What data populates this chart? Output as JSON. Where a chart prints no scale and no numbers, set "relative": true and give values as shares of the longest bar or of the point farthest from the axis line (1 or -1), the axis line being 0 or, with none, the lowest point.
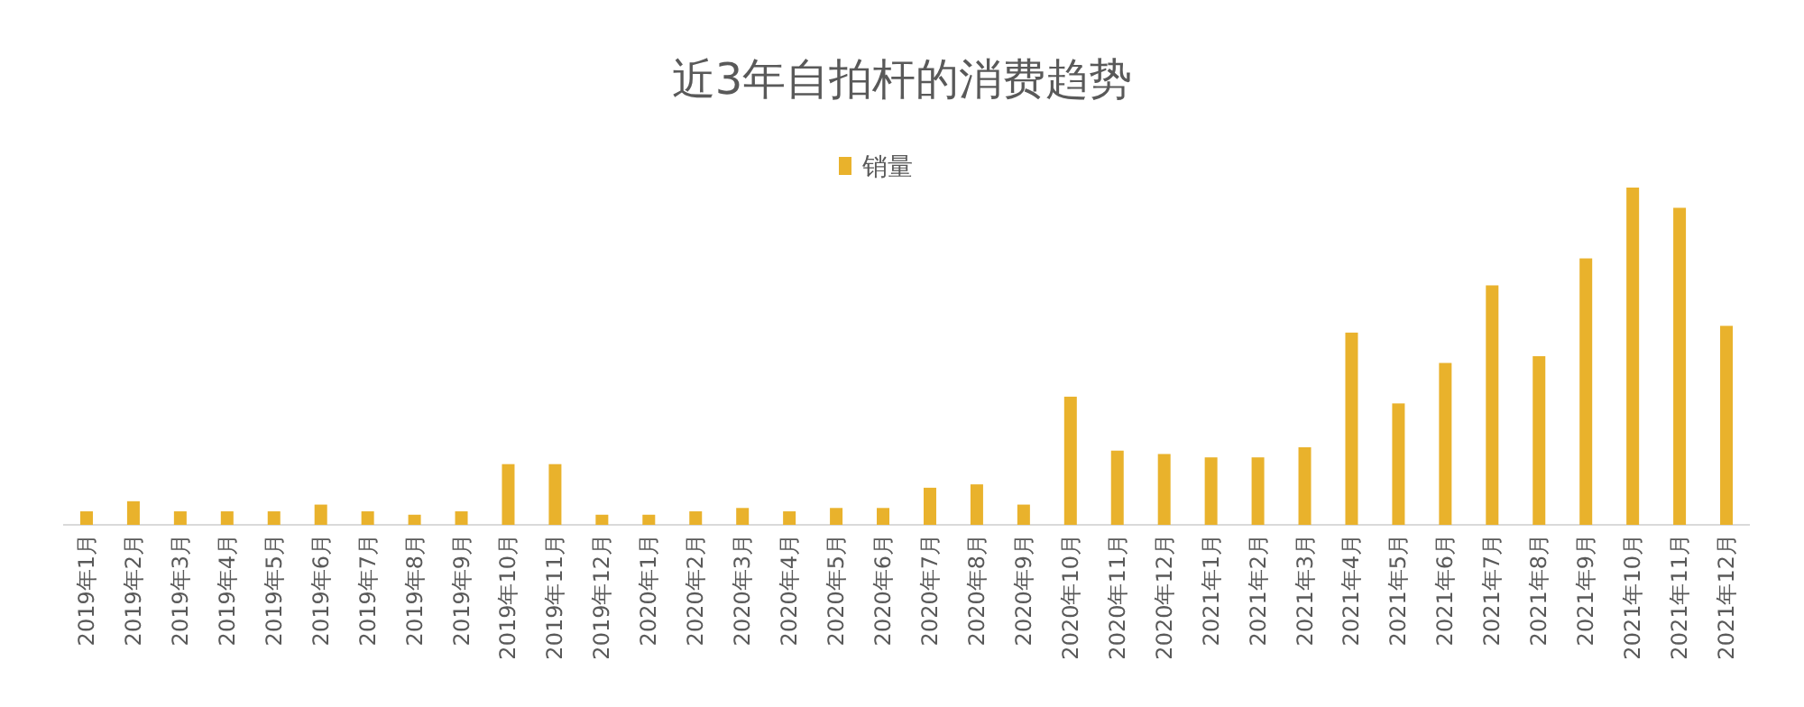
{
  "chart_data": {
    "type": "bar",
    "title": "近3年自拍杆的消费趋势",
    "relative": true,
    "legend": "top",
    "categories": [
      "2019年1月",
      "2019年2月",
      "2019年3月",
      "2019年4月",
      "2019年5月",
      "2019年6月",
      "2019年7月",
      "2019年8月",
      "2019年9月",
      "2019年10月",
      "2019年11月",
      "2019年12月",
      "2020年1月",
      "2020年2月",
      "2020年3月",
      "2020年4月",
      "2020年5月",
      "2020年6月",
      "2020年7月",
      "2020年8月",
      "2020年9月",
      "2020年10月",
      "2020年11月",
      "2020年12月",
      "2021年1月",
      "2021年2月",
      "2021年3月",
      "2021年4月",
      "2021年5月",
      "2021年6月",
      "2021年7月",
      "2021年8月",
      "2021年9月",
      "2021年10月",
      "2021年11月",
      "2021年12月"
    ],
    "series": [
      {
        "name": "销量",
        "color": "#e9b22c",
        "values": [
          0.04,
          0.07,
          0.04,
          0.04,
          0.04,
          0.06,
          0.04,
          0.03,
          0.04,
          0.18,
          0.18,
          0.03,
          0.03,
          0.04,
          0.05,
          0.04,
          0.05,
          0.05,
          0.11,
          0.12,
          0.06,
          0.38,
          0.22,
          0.21,
          0.2,
          0.2,
          0.23,
          0.57,
          0.36,
          0.48,
          0.71,
          0.5,
          0.79,
          1,
          0.94,
          0.59
        ]
      }
    ]
  }
}
